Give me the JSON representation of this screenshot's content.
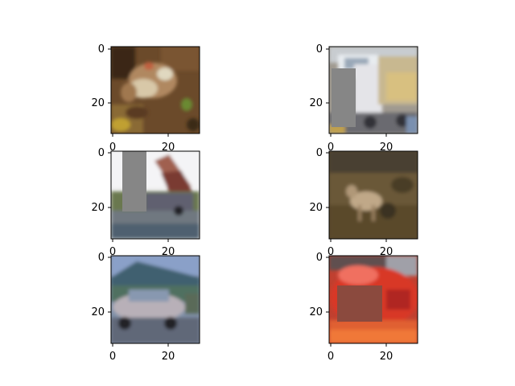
{
  "figure": {
    "background": "#ffffff",
    "panels": [
      {
        "name": "frog",
        "content": "frog on brown ground",
        "x_ticks": [
          "0",
          "20"
        ],
        "y_ticks": [
          "0",
          "20"
        ],
        "occlusion": "none"
      },
      {
        "name": "truck",
        "content": "white and yellow truck",
        "x_ticks": [
          "0",
          "20"
        ],
        "y_ticks": [
          "0",
          "20"
        ],
        "occlusion": "gray-patch"
      },
      {
        "name": "truck-2",
        "content": "dump truck with raised bed",
        "x_ticks": [
          "0",
          "20"
        ],
        "y_ticks": [
          "0",
          "20"
        ],
        "occlusion": "gray-patch"
      },
      {
        "name": "deer",
        "content": "deer in brown field",
        "x_ticks": [
          "0",
          "20"
        ],
        "y_ticks": [
          "0",
          "20"
        ],
        "occlusion": "none"
      },
      {
        "name": "automobile",
        "content": "silver car in front of mountains",
        "x_ticks": [
          "0",
          "20"
        ],
        "y_ticks": [
          "0",
          "20"
        ],
        "occlusion": "none"
      },
      {
        "name": "automobile-2",
        "content": "red car",
        "x_ticks": [
          "0",
          "20"
        ],
        "y_ticks": [
          "0",
          "20"
        ],
        "occlusion": "brown-patch"
      }
    ],
    "colors": {
      "occlusion_gray": "#868686",
      "occlusion_brown": "#8b4a3e",
      "axis": "#000000"
    }
  }
}
